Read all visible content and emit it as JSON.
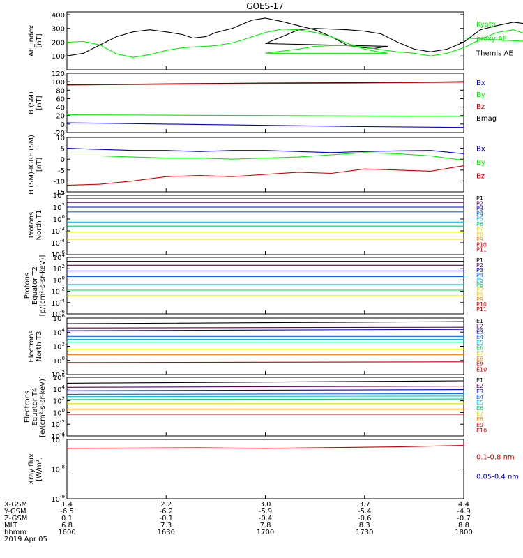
{
  "title": "GOES-17",
  "colors": {
    "black": "#000000",
    "green": "#00ee00",
    "blue": "#0000cc",
    "red": "#cc0000",
    "darkred": "#aa0000",
    "orange": "#ff8800",
    "yellow": "#dddd00",
    "cyan": "#00bbee"
  },
  "chart_data": [
    {
      "id": "ae",
      "type": "line",
      "ylabel": "AE_index\n[nT]",
      "ylim": [
        0,
        420
      ],
      "yticks": [
        "100",
        "200",
        "300",
        "400"
      ],
      "ytick_values": [
        100,
        200,
        300,
        400
      ],
      "ylog": false,
      "legend": [
        {
          "text": "Kyoto",
          "color": "#00ee00"
        },
        {
          "text": "proxy AE",
          "color": "#00ee00"
        },
        {
          "text": "Themis AE",
          "color": "#000000"
        }
      ],
      "x": [
        1600,
        1605,
        1610,
        1615,
        1620,
        1625,
        1630,
        1635,
        1638,
        1642,
        1645,
        1650,
        1653,
        1656,
        1660,
        1665,
        1670,
        1675,
        1680,
        1685,
        1690,
        1693,
        1697,
        1700,
        1705,
        1710,
        1715,
        1720,
        1725,
        1730,
        1735,
        1740,
        1745,
        1750,
        1755,
        1760,
        1765,
        1770,
        1775,
        1780,
        1785,
        1790,
        1795,
        1800
      ],
      "series": [
        {
          "name": "Themis AE",
          "color": "#000000",
          "values": [
            100,
            120,
            180,
            240,
            275,
            290,
            275,
            255,
            230,
            240,
            270,
            300,
            330,
            360,
            375,
            350,
            320,
            290,
            240,
            175,
            160,
            155,
            170,
            190,
            240,
            290,
            300,
            295,
            290,
            280,
            260,
            200,
            150,
            130,
            150,
            200,
            290,
            320,
            345,
            330,
            300,
            250,
            230,
            230
          ]
        },
        {
          "name": "Kyoto proxy AE",
          "color": "#00ee00",
          "values": [
            200,
            205,
            180,
            115,
            90,
            110,
            140,
            160,
            165,
            170,
            175,
            195,
            215,
            240,
            270,
            295,
            290,
            270,
            240,
            190,
            150,
            135,
            120,
            120,
            135,
            150,
            170,
            175,
            175,
            165,
            145,
            130,
            120,
            100,
            120,
            160,
            220,
            270,
            290,
            250,
            210,
            190,
            185,
            230
          ]
        }
      ]
    },
    {
      "id": "bsm",
      "type": "line",
      "ylabel": "B (SM)\n[nT]",
      "ylim": [
        -20,
        120
      ],
      "yticks": [
        "-20",
        "0",
        "20",
        "40",
        "60",
        "80",
        "100",
        "120"
      ],
      "ytick_values": [
        -20,
        0,
        20,
        40,
        60,
        80,
        100,
        120
      ],
      "ylog": false,
      "legend": [
        {
          "text": "Bx",
          "color": "#0000cc"
        },
        {
          "text": "By",
          "color": "#00ee00"
        },
        {
          "text": "Bz",
          "color": "#cc0000"
        },
        {
          "text": "Bmag",
          "color": "#000000"
        }
      ],
      "x": [
        1600,
        1630,
        1700,
        1730,
        1800
      ],
      "series": [
        {
          "name": "Bmag",
          "color": "#000000",
          "values": [
            93,
            95,
            97,
            98,
            100
          ]
        },
        {
          "name": "Bz",
          "color": "#cc0000",
          "values": [
            92,
            94,
            96,
            97,
            99
          ]
        },
        {
          "name": "By",
          "color": "#00ee00",
          "values": [
            22,
            21,
            20,
            19,
            18
          ]
        },
        {
          "name": "Bx",
          "color": "#0000cc",
          "values": [
            3,
            0,
            -3,
            -6,
            -8
          ]
        }
      ]
    },
    {
      "id": "bigrf",
      "type": "line",
      "ylabel": "B (SM)-IGRF (SM)\n[nT]",
      "ylim": [
        -15,
        10
      ],
      "yticks": [
        "-15",
        "-10",
        "-5",
        "0",
        "5",
        "10"
      ],
      "ytick_values": [
        -15,
        -10,
        -5,
        0,
        5,
        10
      ],
      "ylog": false,
      "legend": [
        {
          "text": "Bx",
          "color": "#0000cc"
        },
        {
          "text": "By",
          "color": "#00ee00"
        },
        {
          "text": "Bz",
          "color": "#cc0000"
        }
      ],
      "x": [
        1600,
        1610,
        1620,
        1630,
        1640,
        1650,
        1700,
        1710,
        1720,
        1730,
        1740,
        1750,
        1800
      ],
      "series": [
        {
          "name": "Bx",
          "color": "#0000cc",
          "values": [
            5,
            4.5,
            4,
            4,
            3.5,
            4,
            4,
            3.5,
            3,
            3.5,
            3.8,
            4,
            2.5
          ]
        },
        {
          "name": "By",
          "color": "#00ee00",
          "values": [
            1.5,
            1.5,
            1,
            0.5,
            0.5,
            0,
            0.5,
            1,
            2,
            3,
            2.5,
            1.5,
            -0.5
          ]
        },
        {
          "name": "Bz",
          "color": "#cc0000",
          "values": [
            -12,
            -11.5,
            -10,
            -8,
            -7.5,
            -8,
            -7,
            -6,
            -6.5,
            -4.5,
            -5,
            -5.5,
            -3
          ]
        }
      ]
    },
    {
      "id": "pn",
      "type": "line",
      "ylabel": "Protons\nNorth T1",
      "ylog": true,
      "ylim": [
        -6,
        4
      ],
      "yticks": [
        "10^4",
        "10^2",
        "10^0",
        "10^-2",
        "10^-4",
        "10^-6"
      ],
      "ytick_values": [
        4,
        2,
        0,
        -2,
        -4,
        -6
      ],
      "legend": [
        {
          "text": "P1",
          "color": "#000000"
        },
        {
          "text": "P2",
          "color": "#550055"
        },
        {
          "text": "P3",
          "color": "#0000cc"
        },
        {
          "text": "P4",
          "color": "#0066ff"
        },
        {
          "text": "P5",
          "color": "#00bbee"
        },
        {
          "text": "P6",
          "color": "#00cc66"
        },
        {
          "text": "P7",
          "color": "#dddd00"
        },
        {
          "text": "P8",
          "color": "#ffcc00"
        },
        {
          "text": "P9",
          "color": "#ff8800"
        },
        {
          "text": "P10",
          "color": "#cc0000"
        },
        {
          "text": "P11",
          "color": "#aa0000"
        }
      ],
      "x": [
        1600,
        1800
      ],
      "series": [
        {
          "name": "P1",
          "color": "#000000",
          "values": [
            3.4,
            3.4
          ]
        },
        {
          "name": "P2",
          "color": "#550055",
          "values": [
            2.8,
            2.8
          ]
        },
        {
          "name": "P3",
          "color": "#0000cc",
          "values": [
            2.0,
            2.0
          ]
        },
        {
          "name": "P4",
          "color": "#0066ff",
          "values": [
            1.2,
            1.2
          ]
        },
        {
          "name": "P5",
          "color": "#00bbee",
          "values": [
            -0.5,
            -0.5
          ]
        },
        {
          "name": "P6",
          "color": "#00cc66",
          "values": [
            -1.2,
            -1.2
          ]
        },
        {
          "name": "P7",
          "color": "#dddd00",
          "values": [
            -2.2,
            -2.2
          ]
        },
        {
          "name": "P8",
          "color": "#ffcc00",
          "values": [
            -3.4,
            -3.4
          ]
        }
      ]
    },
    {
      "id": "pe",
      "type": "line",
      "ylabel": "Protons\nEquator T2\n[p/(cm²-s-sr-keV)]",
      "ylog": true,
      "ylim": [
        -6,
        4
      ],
      "yticks": [
        "10^4",
        "10^2",
        "10^0",
        "10^-2",
        "10^-4",
        "10^-6"
      ],
      "ytick_values": [
        4,
        2,
        0,
        -2,
        -4,
        -6
      ],
      "legend": [
        {
          "text": "P1",
          "color": "#000000"
        },
        {
          "text": "P2",
          "color": "#550055"
        },
        {
          "text": "P3",
          "color": "#0000cc"
        },
        {
          "text": "P4",
          "color": "#0066ff"
        },
        {
          "text": "P5",
          "color": "#00bbee"
        },
        {
          "text": "P6",
          "color": "#00cc66"
        },
        {
          "text": "P7",
          "color": "#dddd00"
        },
        {
          "text": "P8",
          "color": "#ffcc00"
        },
        {
          "text": "P9",
          "color": "#ff8800"
        },
        {
          "text": "P10",
          "color": "#cc0000"
        },
        {
          "text": "P11",
          "color": "#aa0000"
        }
      ],
      "x": [
        1600,
        1800
      ],
      "series": [
        {
          "name": "P1",
          "color": "#000000",
          "values": [
            3.3,
            3.3
          ]
        },
        {
          "name": "P2",
          "color": "#550055",
          "values": [
            2.6,
            2.6
          ]
        },
        {
          "name": "P3",
          "color": "#0000cc",
          "values": [
            1.6,
            1.6
          ]
        },
        {
          "name": "P4",
          "color": "#0066ff",
          "values": [
            0.6,
            0.6
          ]
        },
        {
          "name": "P5",
          "color": "#00bbee",
          "values": [
            -0.8,
            -0.8
          ]
        },
        {
          "name": "P6",
          "color": "#00cc66",
          "values": [
            -1.8,
            -1.8
          ]
        },
        {
          "name": "P7",
          "color": "#dddd00",
          "values": [
            -2.8,
            -2.8
          ]
        }
      ]
    },
    {
      "id": "en",
      "type": "line",
      "ylabel": "Electrons\nNorth T3",
      "ylog": true,
      "ylim": [
        -2,
        6
      ],
      "yticks": [
        "10^6",
        "10^4",
        "10^2",
        "10^0",
        "10^-2"
      ],
      "ytick_values": [
        6,
        4,
        2,
        0,
        -2
      ],
      "legend": [
        {
          "text": "E1",
          "color": "#000000"
        },
        {
          "text": "E2",
          "color": "#550055"
        },
        {
          "text": "E3",
          "color": "#0000cc"
        },
        {
          "text": "E4",
          "color": "#0066ff"
        },
        {
          "text": "E5",
          "color": "#00bbee"
        },
        {
          "text": "E6",
          "color": "#00cc66"
        },
        {
          "text": "E7",
          "color": "#dddd00"
        },
        {
          "text": "E8",
          "color": "#ff8800"
        },
        {
          "text": "E9",
          "color": "#cc0000"
        },
        {
          "text": "E10",
          "color": "#aa0000"
        }
      ],
      "x": [
        1600,
        1800
      ],
      "series": [
        {
          "name": "E1",
          "color": "#000000",
          "values": [
            5.2,
            5.5
          ]
        },
        {
          "name": "E2",
          "color": "#550055",
          "values": [
            4.6,
            4.7
          ]
        },
        {
          "name": "E3",
          "color": "#0000cc",
          "values": [
            4.2,
            4.4
          ]
        },
        {
          "name": "E4",
          "color": "#0066ff",
          "values": [
            3.4,
            3.4
          ]
        },
        {
          "name": "E5",
          "color": "#00bbee",
          "values": [
            3.0,
            3.0
          ]
        },
        {
          "name": "E6",
          "color": "#00cc66",
          "values": [
            2.6,
            2.6
          ]
        },
        {
          "name": "E7",
          "color": "#dddd00",
          "values": [
            1.6,
            1.6
          ]
        },
        {
          "name": "E8",
          "color": "#ff8800",
          "values": [
            0.8,
            0.8
          ]
        },
        {
          "name": "E9",
          "color": "#cc0000",
          "values": [
            -0.3,
            -0.2
          ]
        }
      ]
    },
    {
      "id": "ee",
      "type": "line",
      "ylabel": "Electrons\nEquator T4\n[e/(cm²-s-sr-keV)]",
      "ylog": true,
      "ylim": [
        -4,
        6
      ],
      "yticks": [
        "10^6",
        "10^4",
        "10^2",
        "10^0",
        "10^-2",
        "10^-4"
      ],
      "ytick_values": [
        6,
        4,
        2,
        0,
        -2,
        -4
      ],
      "legend": [
        {
          "text": "E1",
          "color": "#000000"
        },
        {
          "text": "E2",
          "color": "#550055"
        },
        {
          "text": "E3",
          "color": "#0000cc"
        },
        {
          "text": "E4",
          "color": "#0066ff"
        },
        {
          "text": "E5",
          "color": "#00bbee"
        },
        {
          "text": "E6",
          "color": "#00cc66"
        },
        {
          "text": "E7",
          "color": "#dddd00"
        },
        {
          "text": "E8",
          "color": "#ff8800"
        },
        {
          "text": "E9",
          "color": "#cc0000"
        },
        {
          "text": "E10",
          "color": "#aa0000"
        }
      ],
      "x": [
        1600,
        1800
      ],
      "series": [
        {
          "name": "E1",
          "color": "#000000",
          "values": [
            5.0,
            5.4
          ]
        },
        {
          "name": "E2",
          "color": "#550055",
          "values": [
            4.3,
            4.5
          ]
        },
        {
          "name": "E3",
          "color": "#0000cc",
          "values": [
            3.7,
            3.9
          ]
        },
        {
          "name": "E4",
          "color": "#0066ff",
          "values": [
            3.1,
            3.2
          ]
        },
        {
          "name": "E5",
          "color": "#00bbee",
          "values": [
            2.7,
            2.8
          ]
        },
        {
          "name": "E6",
          "color": "#00cc66",
          "values": [
            2.2,
            2.3
          ]
        },
        {
          "name": "E7",
          "color": "#dddd00",
          "values": [
            1.5,
            1.5
          ]
        },
        {
          "name": "E8",
          "color": "#ff8800",
          "values": [
            0.6,
            0.6
          ]
        },
        {
          "name": "E9",
          "color": "#cc0000",
          "values": [
            -0.3,
            -0.3
          ]
        }
      ]
    },
    {
      "id": "xray",
      "type": "line",
      "ylabel": "Xray flux\n[W/m²]",
      "ylog": true,
      "ylim": [
        -9,
        -7
      ],
      "yticks": [
        "10^-7",
        "10^-8",
        "10^-9"
      ],
      "ytick_values": [
        -7,
        -8,
        -9
      ],
      "legend": [
        {
          "text": "0.1-0.8 nm",
          "color": "#cc0000"
        },
        {
          "text": "0.05-0.4 nm",
          "color": "#0000cc"
        }
      ],
      "x": [
        1600,
        1640,
        1700,
        1740,
        1800
      ],
      "series": [
        {
          "name": "0.1-0.8 nm",
          "color": "#cc0000",
          "values": [
            -7.3,
            -7.28,
            -7.3,
            -7.25,
            -7.2
          ]
        }
      ]
    }
  ],
  "xaxis": {
    "row_labels": [
      "X-GSM",
      "Y-GSM",
      "Z-GSM",
      "MLT",
      "hhmm",
      "2019 Apr 05"
    ],
    "ticks": [
      {
        "x": 1600,
        "rows": [
          "1.4",
          "-6.5",
          "0.1",
          "6.8",
          "1600"
        ]
      },
      {
        "x": 1630,
        "rows": [
          "2.2",
          "-6.2",
          "-0.1",
          "7.3",
          "1630"
        ]
      },
      {
        "x": 1700,
        "rows": [
          "3.0",
          "-5.9",
          "-0.4",
          "7.8",
          "1700"
        ]
      },
      {
        "x": 1730,
        "rows": [
          "3.7",
          "-5.4",
          "-0.6",
          "8.3",
          "1730"
        ]
      },
      {
        "x": 1800,
        "rows": [
          "4.4",
          "-4.9",
          "-0.7",
          "8.8",
          "1800"
        ]
      }
    ]
  }
}
